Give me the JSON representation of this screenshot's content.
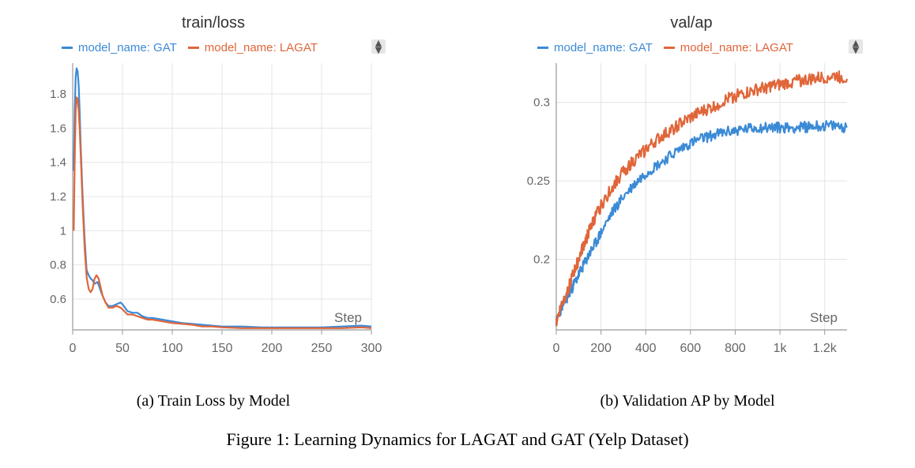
{
  "colors": {
    "gat": "#3b8ad6",
    "lagat": "#e0663a",
    "grid": "#e4e4e4",
    "axis": "#999999",
    "tick": "#666666"
  },
  "figure_caption": "Figure 1: Learning Dynamics for LAGAT and GAT (Yelp Dataset)",
  "panels": [
    {
      "caption": "(a) Train Loss by Model",
      "legend": [
        "model_name: GAT",
        "model_name: LAGAT"
      ],
      "sort_icon": "sort-updown-icon"
    },
    {
      "caption": "(b) Validation AP by Model",
      "legend": [
        "model_name: GAT",
        "model_name: LAGAT"
      ],
      "sort_icon": "sort-updown-icon"
    }
  ],
  "chart_data": [
    {
      "type": "line",
      "title": "train/loss",
      "xlabel": "Step",
      "ylabel": "",
      "xlim": [
        0,
        300
      ],
      "ylim": [
        0.42,
        1.98
      ],
      "xticks": [
        0,
        50,
        100,
        150,
        200,
        250,
        300
      ],
      "xtick_labels": [
        "0",
        "50",
        "100",
        "150",
        "200",
        "250",
        "300"
      ],
      "yticks": [
        0.6,
        0.8,
        1.0,
        1.2,
        1.4,
        1.6,
        1.8
      ],
      "ytick_labels": [
        "0.6",
        "0.8",
        "1",
        "1.2",
        "1.4",
        "1.6",
        "1.8"
      ],
      "grid": true,
      "legend_position": "top",
      "series": [
        {
          "name": "model_name: GAT",
          "color": "#3b8ad6",
          "x": [
            1,
            2,
            3,
            4,
            5,
            6,
            7,
            8,
            10,
            12,
            14,
            16,
            18,
            20,
            22,
            25,
            28,
            30,
            33,
            36,
            40,
            44,
            48,
            50,
            55,
            60,
            65,
            70,
            75,
            80,
            90,
            100,
            110,
            120,
            130,
            140,
            150,
            170,
            190,
            210,
            230,
            250,
            270,
            290,
            300
          ],
          "y": [
            1.35,
            1.7,
            1.9,
            1.95,
            1.93,
            1.85,
            1.7,
            1.5,
            1.2,
            0.95,
            0.77,
            0.74,
            0.72,
            0.71,
            0.69,
            0.7,
            0.65,
            0.62,
            0.58,
            0.56,
            0.56,
            0.57,
            0.58,
            0.57,
            0.53,
            0.52,
            0.52,
            0.5,
            0.49,
            0.49,
            0.48,
            0.47,
            0.46,
            0.455,
            0.45,
            0.445,
            0.44,
            0.44,
            0.435,
            0.435,
            0.435,
            0.435,
            0.44,
            0.445,
            0.44
          ]
        },
        {
          "name": "model_name: LAGAT",
          "color": "#e0663a",
          "x": [
            1,
            2,
            3,
            4,
            5,
            6,
            7,
            8,
            10,
            12,
            14,
            16,
            18,
            20,
            22,
            24,
            26,
            28,
            30,
            33,
            36,
            40,
            44,
            48,
            50,
            55,
            60,
            65,
            70,
            75,
            80,
            90,
            100,
            110,
            120,
            130,
            140,
            150,
            170,
            190,
            210,
            230,
            250,
            270,
            290,
            300
          ],
          "y": [
            1.0,
            1.4,
            1.7,
            1.78,
            1.77,
            1.7,
            1.6,
            1.45,
            1.15,
            0.9,
            0.73,
            0.66,
            0.64,
            0.66,
            0.72,
            0.74,
            0.72,
            0.67,
            0.62,
            0.58,
            0.55,
            0.55,
            0.56,
            0.55,
            0.54,
            0.51,
            0.51,
            0.5,
            0.49,
            0.48,
            0.48,
            0.47,
            0.46,
            0.455,
            0.45,
            0.44,
            0.44,
            0.435,
            0.43,
            0.43,
            0.43,
            0.43,
            0.43,
            0.43,
            0.435,
            0.43
          ]
        }
      ]
    },
    {
      "type": "line",
      "title": "val/ap",
      "xlabel": "Step",
      "ylabel": "",
      "xlim": [
        0,
        1300
      ],
      "ylim": [
        0.155,
        0.325
      ],
      "xticks": [
        0,
        200,
        400,
        600,
        800,
        1000,
        1200
      ],
      "xtick_labels": [
        "0",
        "200",
        "400",
        "600",
        "800",
        "1k",
        "1.2k"
      ],
      "yticks": [
        0.2,
        0.25,
        0.3
      ],
      "ytick_labels": [
        "0.2",
        "0.25",
        "0.3"
      ],
      "grid": true,
      "legend_position": "top",
      "series": [
        {
          "name": "model_name: GAT",
          "color": "#3b8ad6",
          "x": [
            0,
            25,
            50,
            75,
            100,
            125,
            150,
            175,
            200,
            250,
            300,
            350,
            400,
            450,
            500,
            550,
            600,
            650,
            700,
            750,
            800,
            850,
            900,
            950,
            1000,
            1050,
            1100,
            1150,
            1200,
            1250,
            1300
          ],
          "y": [
            0.16,
            0.17,
            0.176,
            0.183,
            0.19,
            0.197,
            0.204,
            0.21,
            0.217,
            0.23,
            0.24,
            0.248,
            0.255,
            0.26,
            0.265,
            0.27,
            0.274,
            0.277,
            0.279,
            0.281,
            0.282,
            0.283,
            0.284,
            0.284,
            0.284,
            0.284,
            0.284,
            0.285,
            0.285,
            0.285,
            0.284
          ],
          "noise": 0.0035
        },
        {
          "name": "model_name: LAGAT",
          "color": "#e0663a",
          "x": [
            0,
            25,
            50,
            75,
            100,
            125,
            150,
            175,
            200,
            250,
            300,
            350,
            400,
            450,
            500,
            550,
            600,
            650,
            700,
            750,
            800,
            850,
            900,
            950,
            1000,
            1050,
            1100,
            1150,
            1200,
            1250,
            1300
          ],
          "y": [
            0.16,
            0.172,
            0.18,
            0.19,
            0.2,
            0.21,
            0.219,
            0.227,
            0.234,
            0.246,
            0.256,
            0.263,
            0.27,
            0.276,
            0.281,
            0.286,
            0.29,
            0.294,
            0.297,
            0.301,
            0.304,
            0.306,
            0.308,
            0.31,
            0.311,
            0.313,
            0.314,
            0.315,
            0.316,
            0.317,
            0.315
          ],
          "noise": 0.004
        }
      ]
    }
  ]
}
